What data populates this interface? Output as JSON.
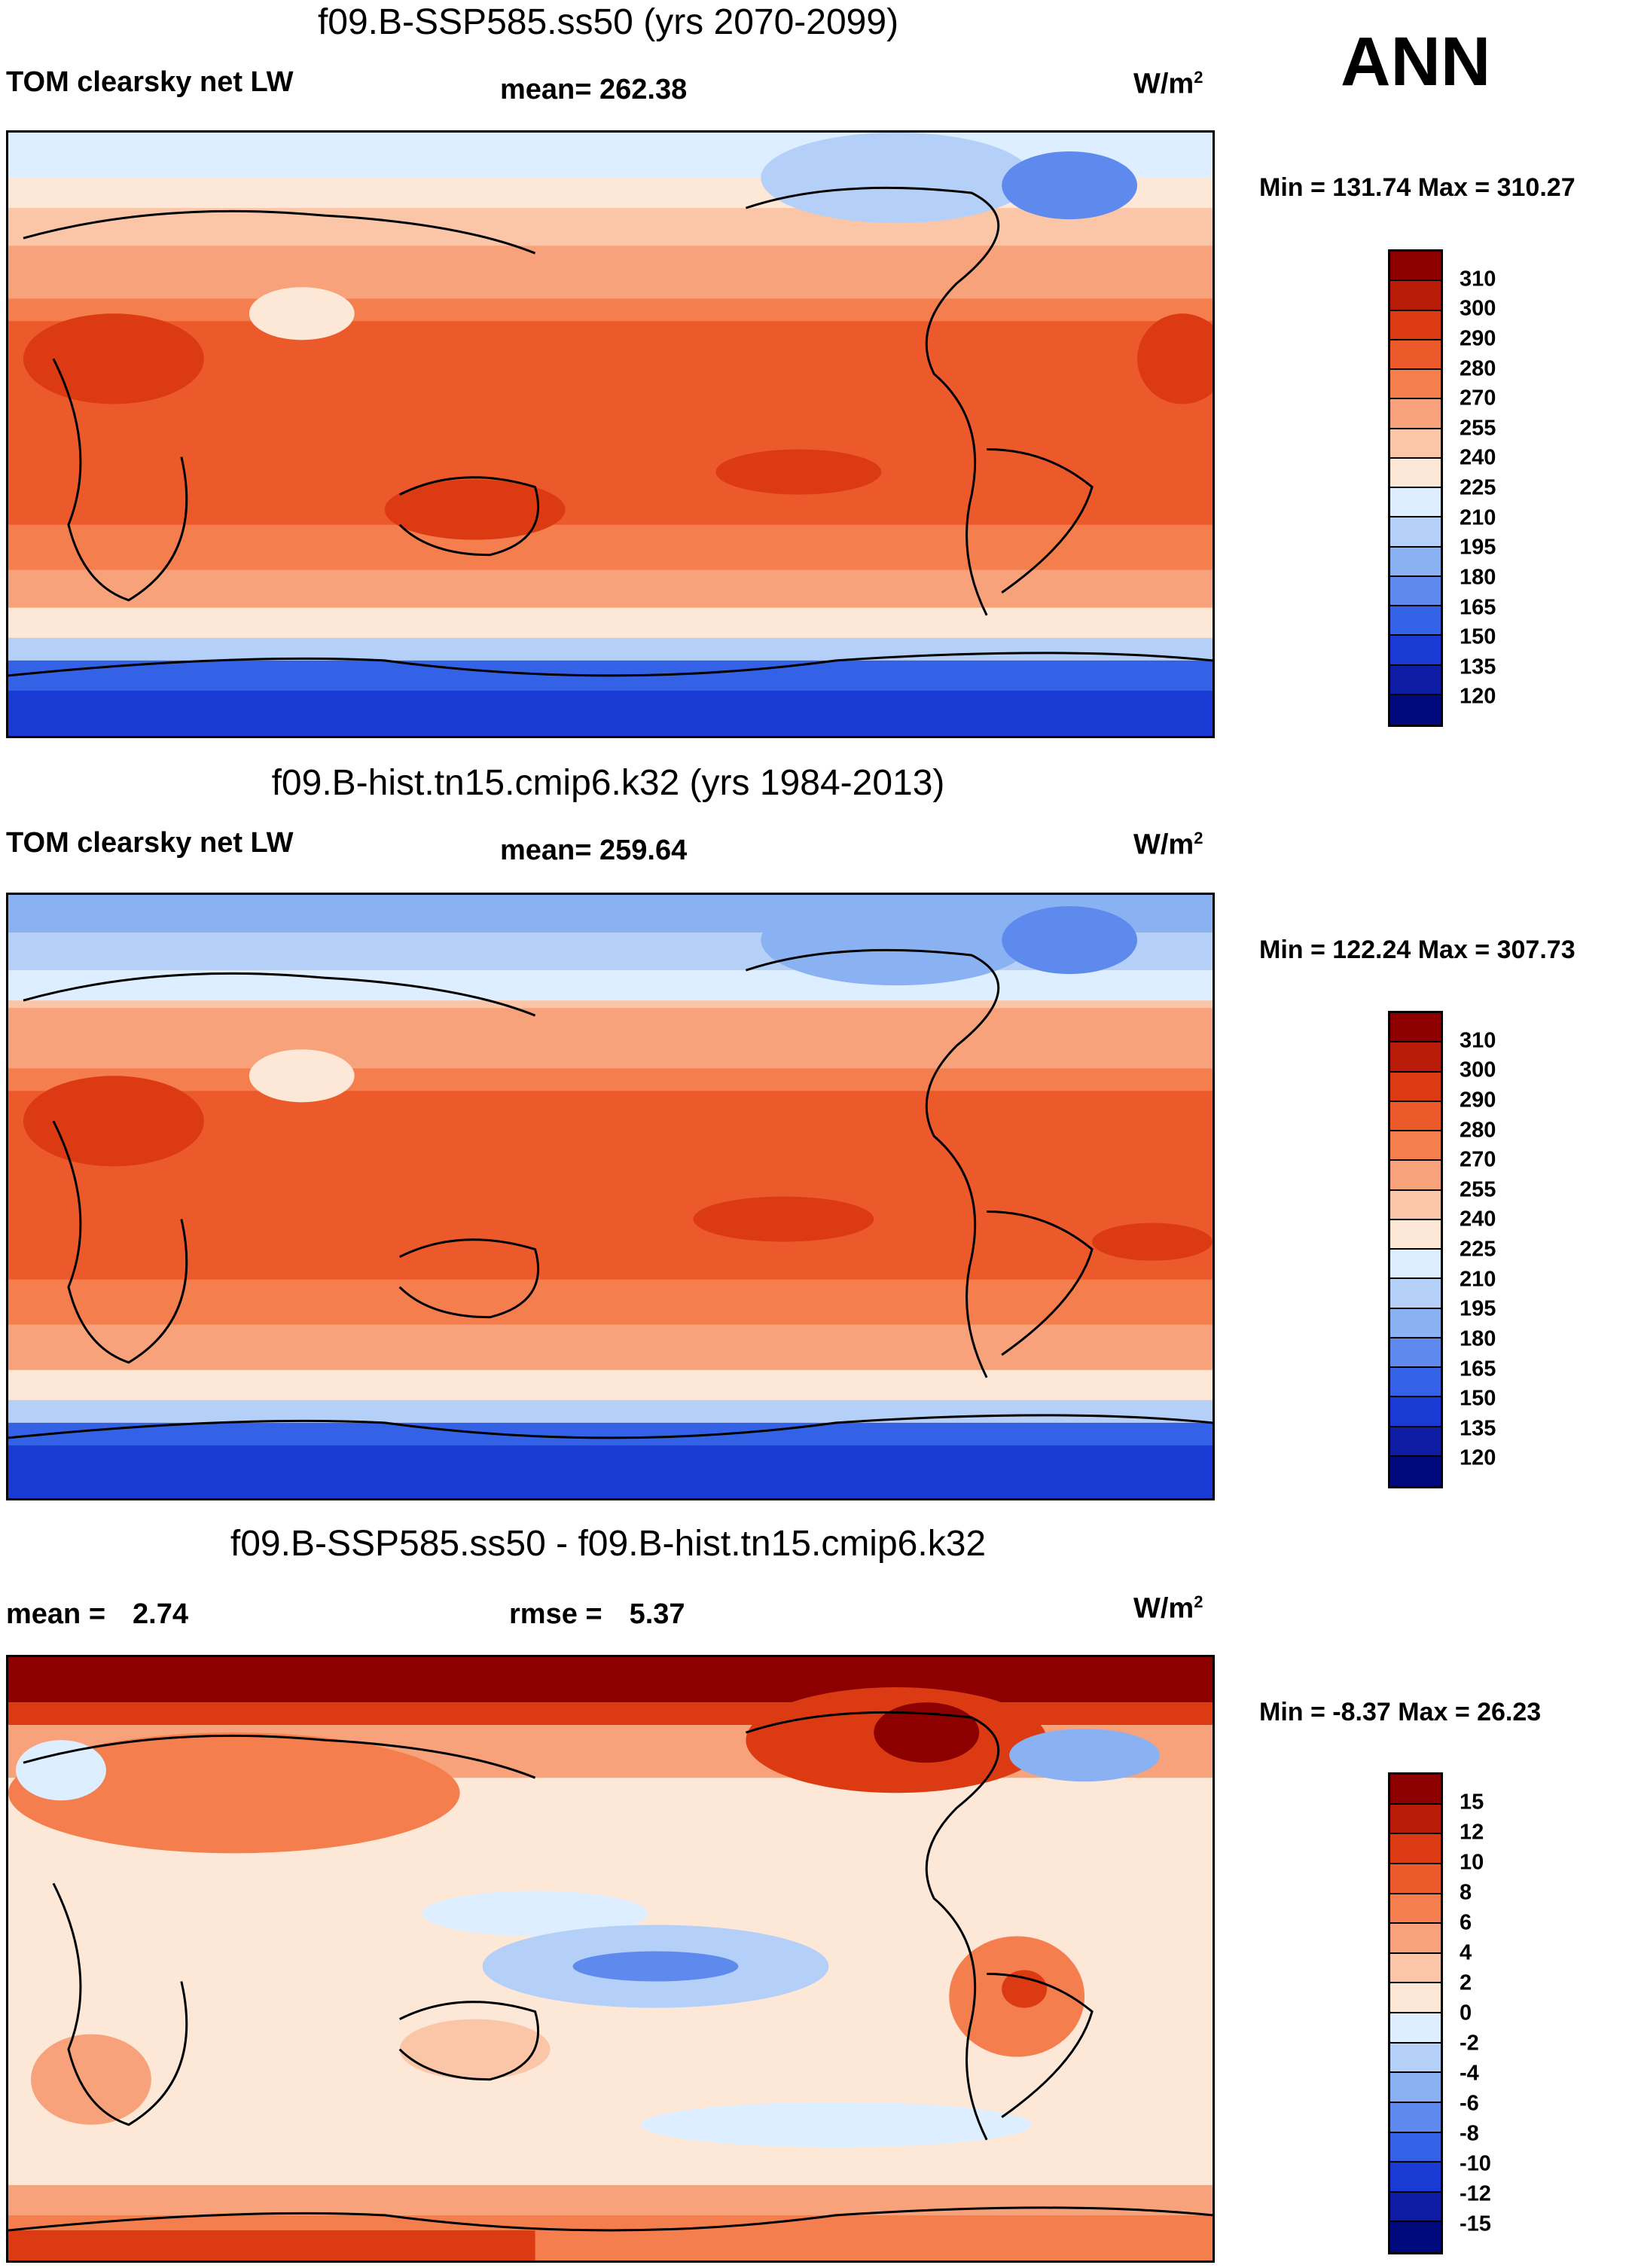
{
  "season": "ANN",
  "panels": [
    {
      "title": "f09.B-SSP585.ss50 (yrs 2070-2099)",
      "variable": "TOM clearsky net LW",
      "mean_text": "mean= 262.38",
      "units_base": "W/m",
      "units_exp": "2",
      "minmax": "Min = 131.74 Max = 310.27",
      "colorbar": {
        "labels": [
          "310",
          "300",
          "290",
          "280",
          "270",
          "255",
          "240",
          "225",
          "210",
          "195",
          "180",
          "165",
          "150",
          "135",
          "120"
        ],
        "colors": [
          "#8c0000",
          "#b81c08",
          "#dc3a12",
          "#ec5a2c",
          "#f47e4e",
          "#f7a27a",
          "#fbc6a8",
          "#fde8d8",
          "#dceeff",
          "#b4d0f8",
          "#8ab2f2",
          "#5e8aee",
          "#3462e6",
          "#1a3ad4",
          "#0e1ca4",
          "#000a7c"
        ]
      },
      "chart_data": {
        "type": "heatmap",
        "title": "f09.B-SSP585.ss50 (yrs 2070-2099)",
        "field": "TOM clearsky net LW",
        "units": "W/m2",
        "mean": 262.38,
        "min": 131.74,
        "max": 310.27,
        "contour_levels": [
          120,
          135,
          150,
          165,
          180,
          195,
          210,
          225,
          240,
          255,
          270,
          280,
          290,
          300,
          310
        ]
      }
    },
    {
      "title": "f09.B-hist.tn15.cmip6.k32 (yrs 1984-2013)",
      "variable": "TOM clearsky net LW",
      "mean_text": "mean= 259.64",
      "units_base": "W/m",
      "units_exp": "2",
      "minmax": "Min = 122.24 Max = 307.73",
      "colorbar": {
        "labels": [
          "310",
          "300",
          "290",
          "280",
          "270",
          "255",
          "240",
          "225",
          "210",
          "195",
          "180",
          "165",
          "150",
          "135",
          "120"
        ],
        "colors": [
          "#8c0000",
          "#b81c08",
          "#dc3a12",
          "#ec5a2c",
          "#f47e4e",
          "#f7a27a",
          "#fbc6a8",
          "#fde8d8",
          "#dceeff",
          "#b4d0f8",
          "#8ab2f2",
          "#5e8aee",
          "#3462e6",
          "#1a3ad4",
          "#0e1ca4",
          "#000a7c"
        ]
      },
      "chart_data": {
        "type": "heatmap",
        "title": "f09.B-hist.tn15.cmip6.k32 (yrs 1984-2013)",
        "field": "TOM clearsky net LW",
        "units": "W/m2",
        "mean": 259.64,
        "min": 122.24,
        "max": 307.73,
        "contour_levels": [
          120,
          135,
          150,
          165,
          180,
          195,
          210,
          225,
          240,
          255,
          270,
          280,
          290,
          300,
          310
        ]
      }
    },
    {
      "title": "f09.B-SSP585.ss50 - f09.B-hist.tn15.cmip6.k32",
      "mean_label": "mean =",
      "mean_value": "2.74",
      "rmse_label": "rmse =",
      "rmse_value": "5.37",
      "units_base": "W/m",
      "units_exp": "2",
      "minmax": "Min =  -8.37 Max =  26.23",
      "colorbar": {
        "labels": [
          "15",
          "12",
          "10",
          "8",
          "6",
          "4",
          "2",
          "0",
          "-2",
          "-4",
          "-6",
          "-8",
          "-10",
          "-12",
          "-15"
        ],
        "colors": [
          "#8c0000",
          "#b81c08",
          "#dc3a12",
          "#ec5a2c",
          "#f47e4e",
          "#f7a27a",
          "#fbc6a8",
          "#fde8d8",
          "#dceeff",
          "#b4d0f8",
          "#8ab2f2",
          "#5e8aee",
          "#3462e6",
          "#1a3ad4",
          "#0e1ca4",
          "#000a7c"
        ]
      },
      "chart_data": {
        "type": "heatmap",
        "title": "f09.B-SSP585.ss50 - f09.B-hist.tn15.cmip6.k32",
        "units": "W/m2",
        "mean": 2.74,
        "rmse": 5.37,
        "min": -8.37,
        "max": 26.23,
        "contour_levels": [
          -15,
          -12,
          -10,
          -8,
          -6,
          -4,
          -2,
          0,
          2,
          4,
          6,
          8,
          10,
          12,
          15
        ]
      }
    }
  ]
}
